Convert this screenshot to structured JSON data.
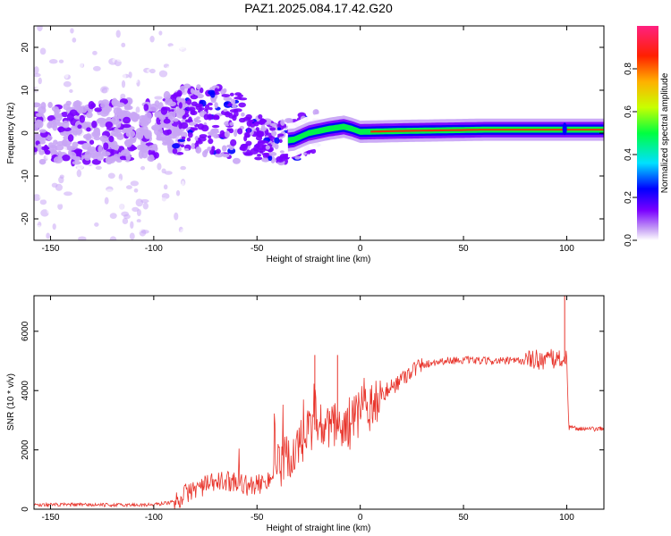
{
  "title": "PAZ1.2025.084.17.42.G20",
  "chart_data": [
    {
      "type": "heatmap",
      "xlabel": "Height of straight line (km)",
      "ylabel": "Frequency (Hz)",
      "xlim": [
        -158,
        118
      ],
      "ylim": [
        -25,
        25
      ],
      "xticks": [
        -150,
        -100,
        -50,
        0,
        50,
        100
      ],
      "yticks": [
        -20,
        -10,
        0,
        10,
        20
      ],
      "colorbar": {
        "label": "Normalized spectral amplitude",
        "range": [
          0,
          1
        ],
        "ticks": [
          "0.0",
          "0.2",
          "0.4",
          "0.6",
          "0.8"
        ],
        "colors": [
          "#ffffff",
          "#c9a6f5",
          "#7a00ff",
          "#0000ff",
          "#00e0ff",
          "#00ff40",
          "#c8ff00",
          "#ffb000",
          "#ff2000",
          "#ff2080"
        ]
      },
      "ridge_center_hz": [
        [
          -155,
          0
        ],
        [
          -130,
          0
        ],
        [
          -100,
          1
        ],
        [
          -85,
          3
        ],
        [
          -70,
          3
        ],
        [
          -60,
          1.5
        ],
        [
          -50,
          -1
        ],
        [
          -40,
          -2
        ],
        [
          -32,
          -1.5
        ],
        [
          -25,
          0
        ],
        [
          -15,
          1
        ],
        [
          -8,
          1.5
        ],
        [
          -4,
          1
        ],
        [
          0,
          0.3
        ],
        [
          20,
          0.5
        ],
        [
          60,
          0.8
        ],
        [
          100,
          0.8
        ],
        [
          118,
          0.8
        ]
      ]
    },
    {
      "type": "line",
      "xlabel": "Height of straight line (km)",
      "ylabel": "SNR (10 * v/v)",
      "xlim": [
        -158,
        118
      ],
      "ylim": [
        0,
        7200
      ],
      "xticks": [
        -150,
        -100,
        -50,
        0,
        50,
        100
      ],
      "yticks": [
        0,
        2000,
        4000,
        6000
      ],
      "color": "#e8332a",
      "series": [
        {
          "x": [
            -158,
            -140,
            -120,
            -100,
            -90,
            -85,
            -80,
            -75,
            -70,
            -65,
            -60,
            -55,
            -50,
            -45,
            -40,
            -35,
            -30,
            -25,
            -20,
            -15,
            -10,
            -5,
            0,
            5,
            10,
            15,
            20,
            25,
            30,
            35,
            40,
            45,
            50,
            60,
            70,
            80,
            85,
            90,
            95,
            98,
            100,
            101,
            110,
            118
          ],
          "y": [
            150,
            150,
            140,
            150,
            250,
            500,
            700,
            800,
            900,
            950,
            950,
            800,
            800,
            1000,
            1300,
            1700,
            2100,
            2500,
            2800,
            2700,
            2700,
            2900,
            3200,
            3500,
            3800,
            4100,
            4400,
            4700,
            4850,
            4950,
            5000,
            5020,
            5030,
            5000,
            5000,
            5000,
            5050,
            5050,
            5050,
            5100,
            5000,
            2750,
            2700,
            2700
          ]
        }
      ],
      "notable_peaks": [
        {
          "x": 99,
          "y": 7200
        },
        {
          "x": -22,
          "y": 5200
        },
        {
          "x": -11,
          "y": 5200
        }
      ]
    }
  ]
}
